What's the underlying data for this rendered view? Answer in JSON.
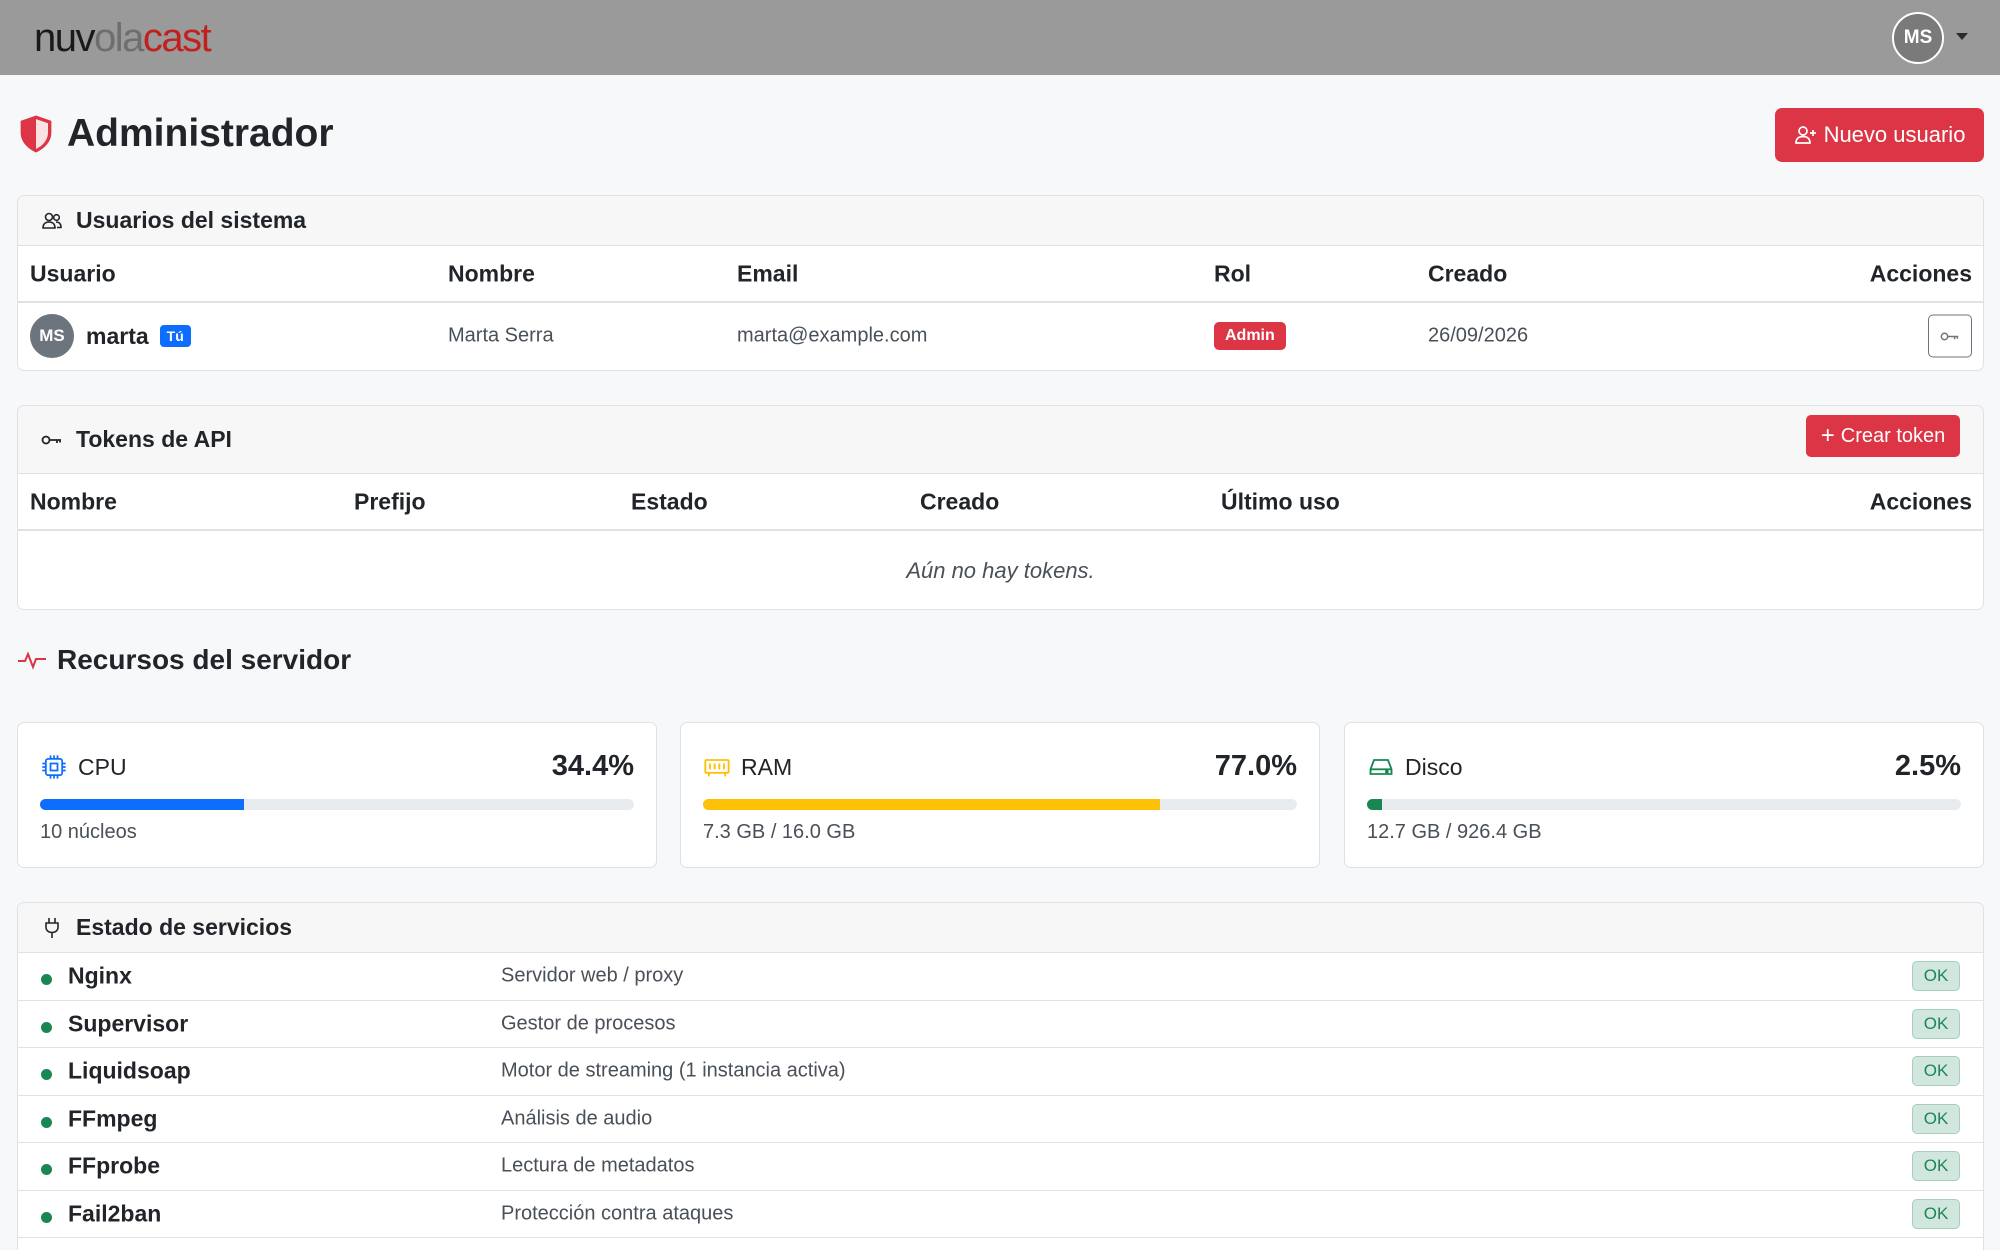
{
  "app": {
    "logo_parts": [
      "nuv",
      "ola",
      "cast"
    ],
    "user_initials": "MS"
  },
  "header": {
    "title": "Administrador",
    "new_user_label": "Nuevo usuario"
  },
  "users": {
    "title": "Usuarios del sistema",
    "columns": [
      "Usuario",
      "Nombre",
      "Email",
      "Rol",
      "Creado",
      "Acciones"
    ],
    "rows": [
      {
        "initials": "MS",
        "username": "marta",
        "you_badge": "Tú",
        "name": "Marta Serra",
        "email": "marta@example.com",
        "role": "Admin",
        "created": "26/09/2026"
      }
    ]
  },
  "tokens": {
    "title": "Tokens de API",
    "create_label": "Crear token",
    "columns": [
      "Nombre",
      "Prefijo",
      "Estado",
      "Creado",
      "Último uso",
      "Acciones"
    ],
    "empty_message": "Aún no hay tokens."
  },
  "resources": {
    "title": "Recursos del servidor",
    "items": [
      {
        "label": "CPU",
        "percent_text": "34.4%",
        "percent": 34.4,
        "detail": "10 núcleos",
        "color": "#0d6efd"
      },
      {
        "label": "RAM",
        "percent_text": "77.0%",
        "percent": 77.0,
        "detail": "7.3 GB / 16.0 GB",
        "color": "#ffc107"
      },
      {
        "label": "Disco",
        "percent_text": "2.5%",
        "percent": 2.5,
        "detail": "12.7 GB / 926.4 GB",
        "color": "#198754"
      }
    ]
  },
  "services": {
    "title": "Estado de servicios",
    "items": [
      {
        "name": "Nginx",
        "desc": "Servidor web / proxy",
        "status": "OK"
      },
      {
        "name": "Supervisor",
        "desc": "Gestor de procesos",
        "status": "OK"
      },
      {
        "name": "Liquidsoap",
        "desc": "Motor de streaming (1 instancia activa)",
        "status": "OK"
      },
      {
        "name": "FFmpeg",
        "desc": "Análisis de audio",
        "status": "OK"
      },
      {
        "name": "FFprobe",
        "desc": "Lectura de metadatos",
        "status": "OK"
      },
      {
        "name": "Fail2ban",
        "desc": "Protección contra ataques",
        "status": "OK"
      }
    ]
  }
}
